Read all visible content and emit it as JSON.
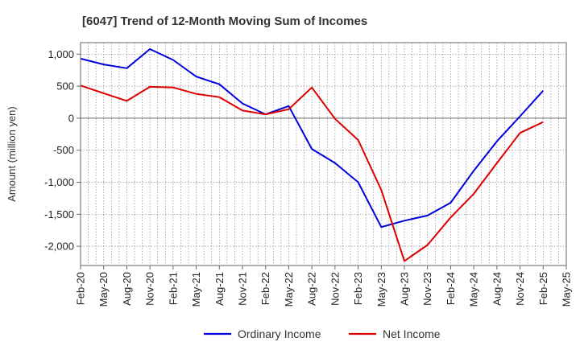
{
  "chart_data": {
    "type": "line",
    "title": "[6047]  Trend of 12-Month Moving Sum of Incomes",
    "xlabel": "",
    "ylabel": "Amount (million yen)",
    "ylim": [
      -2300,
      1180
    ],
    "yticks": [
      1000,
      500,
      0,
      -500,
      -1000,
      -1500,
      -2000
    ],
    "ytick_labels": [
      "1,000",
      "500",
      "0",
      "-500",
      "-1,000",
      "-1,500",
      "-2,000"
    ],
    "categories": [
      "Feb-20",
      "May-20",
      "Aug-20",
      "Nov-20",
      "Feb-21",
      "May-21",
      "Aug-21",
      "Nov-21",
      "Feb-22",
      "May-22",
      "Aug-22",
      "Nov-22",
      "Feb-23",
      "May-23",
      "Aug-23",
      "Nov-23",
      "Feb-24",
      "May-24",
      "Aug-24",
      "Nov-24",
      "Feb-25",
      "May-25"
    ],
    "grid": true,
    "legend_position": "bottom",
    "series": [
      {
        "name": "Ordinary Income",
        "color": "#0000dd",
        "values": [
          930,
          840,
          780,
          1080,
          910,
          650,
          530,
          230,
          60,
          190,
          -480,
          -700,
          -1000,
          -1700,
          -1600,
          -1520,
          -1320,
          -820,
          -360,
          30,
          430,
          null
        ]
      },
      {
        "name": "Net Income",
        "color": "#dd0000",
        "values": [
          510,
          390,
          270,
          490,
          480,
          380,
          330,
          120,
          60,
          140,
          480,
          -10,
          -340,
          -1120,
          -2230,
          -1980,
          -1550,
          -1180,
          -700,
          -230,
          -60,
          null
        ]
      }
    ]
  }
}
